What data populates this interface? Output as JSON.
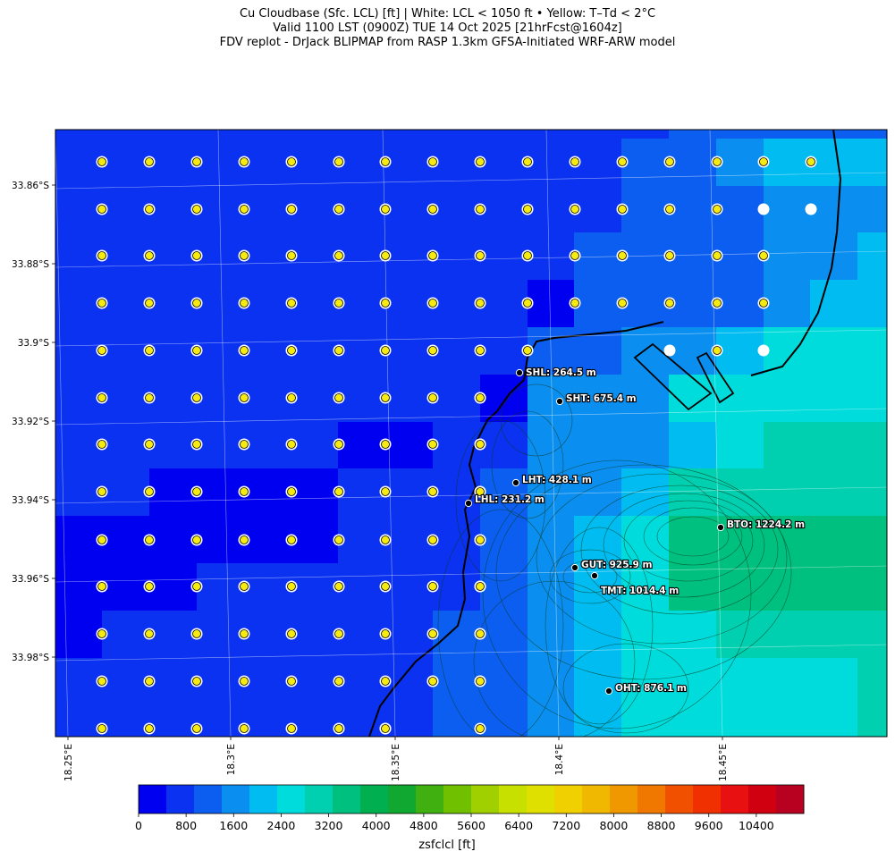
{
  "header": {
    "title_line1": "Cu Cloudbase (Sfc. LCL) [ft]  |  White: LCL < 1050 ft • Yellow: T–Td < 2°C",
    "title_line2": "Valid 1100 LST (0900Z) TUE 14 Oct 2025 [21hrFcst@1604z]",
    "title_line3": "FDV replot - DrJack BLIPMAP from RASP 1.3km GFSA-Initiated WRF-ARW model"
  },
  "map": {
    "lat_ticks": [
      "33.86°S",
      "33.88°S",
      "33.9°S",
      "33.92°S",
      "33.94°S",
      "33.96°S",
      "33.98°S"
    ],
    "lon_ticks": [
      "18.25°E",
      "18.3°E",
      "18.35°E",
      "18.4°E",
      "18.45°E"
    ],
    "stations": [
      {
        "label": "SHL: 264.5 m"
      },
      {
        "label": "SHT: 675.4 m"
      },
      {
        "label": "LHT: 428.1 m"
      },
      {
        "label": "LHL: 231.2 m"
      },
      {
        "label": "BTO: 1224.2 m"
      },
      {
        "label": "GUT: 925.9 m"
      },
      {
        "label": "TMT: 1014.4 m"
      },
      {
        "label": "OHT: 876.1 m"
      }
    ],
    "marker_legend": {
      "white": "LCL < 1050 ft",
      "yellow": "T–Td < 2°C"
    }
  },
  "colorbar": {
    "variable_label": "zsfclcl [ft]",
    "tick_labels": [
      "0",
      "800",
      "1600",
      "2400",
      "3200",
      "4000",
      "4800",
      "5600",
      "6400",
      "7200",
      "8000",
      "8800",
      "9600",
      "10400"
    ],
    "colors": [
      "#0000f0",
      "#0a32f0",
      "#0b5ef0",
      "#0a8ef0",
      "#00bcf0",
      "#00dcdc",
      "#00d0b0",
      "#00c080",
      "#00b050",
      "#10a830",
      "#40b010",
      "#70c000",
      "#a0d000",
      "#c8e000",
      "#e0e000",
      "#f0d000",
      "#f0b800",
      "#f09800",
      "#f07800",
      "#f05000",
      "#f03000",
      "#e81010",
      "#d00010",
      "#b80020"
    ],
    "min": 0,
    "max": 11200,
    "step": 400
  }
}
